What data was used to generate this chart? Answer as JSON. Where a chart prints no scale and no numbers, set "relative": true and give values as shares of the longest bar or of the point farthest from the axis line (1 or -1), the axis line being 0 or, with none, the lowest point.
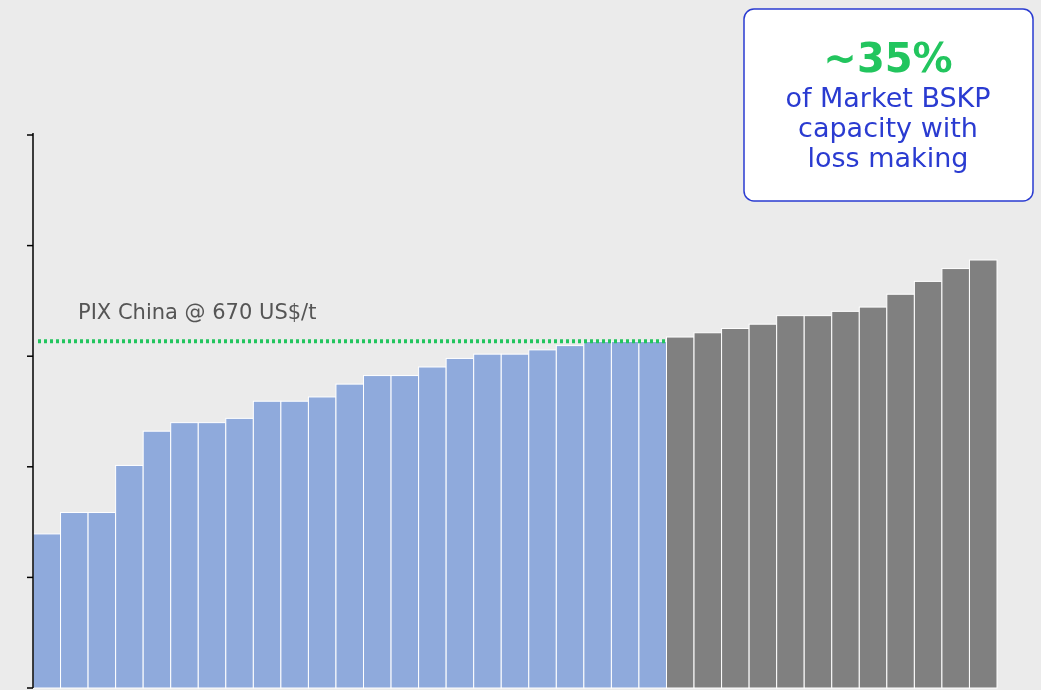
{
  "chart_data": {
    "type": "bar",
    "relative": true,
    "categories": [
      null,
      null,
      null,
      null,
      null,
      null,
      null,
      null,
      null,
      null,
      null,
      null,
      null,
      null,
      null,
      null,
      null,
      null,
      null,
      null,
      null,
      null,
      null,
      null,
      null,
      null,
      null,
      null,
      null,
      null,
      null,
      null,
      null,
      null,
      null
    ],
    "values": [
      0.36,
      0.41,
      0.41,
      0.52,
      0.6,
      0.62,
      0.62,
      0.63,
      0.67,
      0.67,
      0.68,
      0.71,
      0.73,
      0.73,
      0.75,
      0.77,
      0.78,
      0.78,
      0.79,
      0.8,
      0.81,
      0.81,
      0.81,
      0.82,
      0.83,
      0.84,
      0.85,
      0.87,
      0.87,
      0.88,
      0.89,
      0.92,
      0.95,
      0.98,
      1
    ],
    "colors": [
      "#8faadc",
      "#8faadc",
      "#8faadc",
      "#8faadc",
      "#8faadc",
      "#8faadc",
      "#8faadc",
      "#8faadc",
      "#8faadc",
      "#8faadc",
      "#8faadc",
      "#8faadc",
      "#8faadc",
      "#8faadc",
      "#8faadc",
      "#8faadc",
      "#8faadc",
      "#8faadc",
      "#8faadc",
      "#8faadc",
      "#8faadc",
      "#8faadc",
      "#8faadc",
      "#808080",
      "#808080",
      "#808080",
      "#808080",
      "#808080",
      "#808080",
      "#808080",
      "#808080",
      "#808080",
      "#808080",
      "#808080",
      "#808080"
    ],
    "ref_lines": [
      {
        "axis": "y",
        "value": 0.81,
        "label": "PIX China @ 670 US$/t",
        "color": "#22c55e",
        "line_style": "dotted"
      }
    ],
    "annotations": [
      "~35%",
      "of Market BSKP capacity with loss making"
    ]
  }
}
